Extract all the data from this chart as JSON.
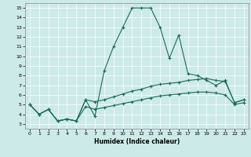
{
  "xlabel": "Humidex (Indice chaleur)",
  "background_color": "#cceae8",
  "line_color": "#1a6b5e",
  "xlim": [
    -0.5,
    23.5
  ],
  "ylim": [
    2.5,
    15.5
  ],
  "yticks": [
    3,
    4,
    5,
    6,
    7,
    8,
    9,
    10,
    11,
    12,
    13,
    14,
    15
  ],
  "xticks": [
    0,
    1,
    2,
    3,
    4,
    5,
    6,
    7,
    8,
    9,
    10,
    11,
    12,
    13,
    14,
    15,
    16,
    17,
    18,
    19,
    20,
    21,
    22,
    23
  ],
  "series": [
    {
      "x": [
        0,
        1,
        2,
        3,
        4,
        5,
        6,
        7,
        8,
        9,
        10,
        11,
        12,
        13,
        14,
        15,
        16,
        17,
        18,
        19,
        20,
        21,
        22,
        23
      ],
      "y": [
        5,
        4,
        4.5,
        3.3,
        3.5,
        3.3,
        5.5,
        3.8,
        8.5,
        11,
        13,
        15,
        15,
        15,
        13,
        9.8,
        12.2,
        8.2,
        8.0,
        7.5,
        7.0,
        7.5,
        5.2,
        5.5
      ]
    },
    {
      "x": [
        0,
        1,
        2,
        3,
        4,
        5,
        6,
        7,
        8,
        9,
        10,
        11,
        12,
        13,
        14,
        15,
        16,
        17,
        18,
        19,
        20,
        21,
        22,
        23
      ],
      "y": [
        5,
        4,
        4.5,
        3.3,
        3.5,
        3.3,
        5.5,
        5.3,
        5.5,
        5.8,
        6.1,
        6.4,
        6.6,
        6.9,
        7.1,
        7.2,
        7.3,
        7.5,
        7.6,
        7.7,
        7.5,
        7.4,
        5.2,
        5.5
      ]
    },
    {
      "x": [
        0,
        1,
        2,
        3,
        4,
        5,
        6,
        7,
        8,
        9,
        10,
        11,
        12,
        13,
        14,
        15,
        16,
        17,
        18,
        19,
        20,
        21,
        22,
        23
      ],
      "y": [
        5,
        4,
        4.5,
        3.3,
        3.5,
        3.3,
        4.8,
        4.5,
        4.7,
        4.9,
        5.1,
        5.3,
        5.5,
        5.7,
        5.9,
        6.0,
        6.1,
        6.2,
        6.3,
        6.3,
        6.2,
        6.0,
        5.0,
        5.2
      ]
    }
  ]
}
